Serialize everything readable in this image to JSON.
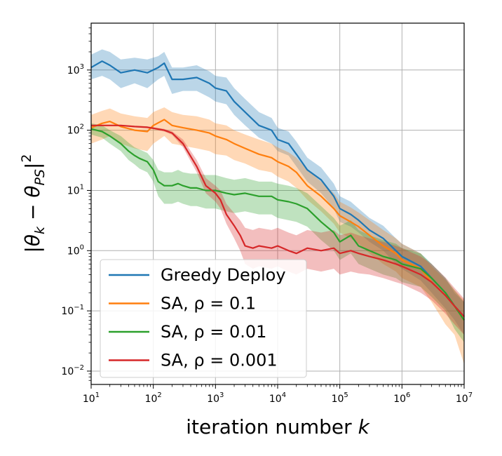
{
  "chart_data": {
    "type": "line",
    "xscale": "log",
    "yscale": "log",
    "xlim": [
      10,
      10000000
    ],
    "ylim": [
      0.006,
      6000
    ],
    "grid": true,
    "legend_position": "lower-left",
    "xlabel": "iteration number k",
    "ylabel": "|θk − θPS|²",
    "x_ticks": [
      {
        "value": 10,
        "base": "10",
        "exp": "1"
      },
      {
        "value": 100,
        "base": "10",
        "exp": "2"
      },
      {
        "value": 1000,
        "base": "10",
        "exp": "3"
      },
      {
        "value": 10000,
        "base": "10",
        "exp": "4"
      },
      {
        "value": 100000,
        "base": "10",
        "exp": "5"
      },
      {
        "value": 1000000,
        "base": "10",
        "exp": "6"
      },
      {
        "value": 10000000,
        "base": "10",
        "exp": "7"
      }
    ],
    "y_ticks": [
      {
        "value": 0.01,
        "base": "10",
        "exp": "−2"
      },
      {
        "value": 0.1,
        "base": "10",
        "exp": "−1"
      },
      {
        "value": 1,
        "base": "10",
        "exp": "0"
      },
      {
        "value": 10,
        "base": "10",
        "exp": "1"
      },
      {
        "value": 100,
        "base": "10",
        "exp": "2"
      },
      {
        "value": 1000,
        "base": "10",
        "exp": "3"
      }
    ],
    "series": [
      {
        "name": "Greedy Deploy",
        "color": "#1f77b4",
        "x": [
          10,
          15,
          20,
          30,
          50,
          80,
          120,
          150,
          200,
          300,
          500,
          800,
          1000,
          1500,
          2000,
          3000,
          5000,
          8000,
          10000,
          15000,
          20000,
          30000,
          50000,
          80000,
          100000,
          150000,
          200000,
          300000,
          500000,
          800000,
          1000000,
          2000000,
          3000000,
          5000000,
          7000000,
          10000000
        ],
        "y": [
          1100,
          1400,
          1200,
          900,
          1000,
          900,
          1100,
          1300,
          700,
          700,
          750,
          600,
          500,
          450,
          300,
          200,
          120,
          100,
          70,
          60,
          40,
          22,
          15,
          8,
          5,
          4,
          3.2,
          2.2,
          1.6,
          1.0,
          0.8,
          0.55,
          0.35,
          0.2,
          0.12,
          0.08
        ],
        "band_lo": [
          700,
          800,
          700,
          500,
          600,
          500,
          700,
          800,
          400,
          450,
          450,
          350,
          300,
          270,
          180,
          120,
          75,
          60,
          45,
          38,
          25,
          14,
          9,
          5,
          3,
          2.5,
          2,
          1.4,
          1,
          0.6,
          0.5,
          0.32,
          0.2,
          0.11,
          0.07,
          0.04
        ],
        "band_hi": [
          1800,
          2200,
          2000,
          1500,
          1600,
          1500,
          1700,
          2000,
          1100,
          1100,
          1200,
          950,
          800,
          750,
          500,
          330,
          200,
          160,
          110,
          95,
          65,
          35,
          24,
          13,
          8,
          6.5,
          5,
          3.5,
          2.6,
          1.6,
          1.3,
          0.9,
          0.6,
          0.35,
          0.2,
          0.14
        ]
      },
      {
        "name": "SA, ρ = 0.1",
        "color": "#ff7f0e",
        "x": [
          10,
          15,
          20,
          30,
          50,
          80,
          100,
          150,
          200,
          300,
          500,
          800,
          1000,
          1500,
          2000,
          3000,
          5000,
          8000,
          10000,
          15000,
          20000,
          30000,
          50000,
          80000,
          100000,
          150000,
          200000,
          300000,
          500000,
          800000,
          1000000,
          2000000,
          3000000,
          5000000,
          7000000,
          10000000
        ],
        "y": [
          110,
          130,
          140,
          115,
          100,
          95,
          120,
          150,
          120,
          110,
          100,
          90,
          80,
          70,
          60,
          50,
          40,
          35,
          30,
          25,
          20,
          12,
          8,
          5,
          3.8,
          3,
          2.5,
          1.8,
          1.2,
          0.9,
          0.7,
          0.5,
          0.3,
          0.18,
          0.12,
          0.07
        ],
        "band_lo": [
          60,
          70,
          80,
          60,
          50,
          45,
          60,
          80,
          60,
          55,
          50,
          45,
          40,
          38,
          32,
          28,
          22,
          20,
          17,
          14,
          11,
          7,
          4.5,
          2.8,
          2,
          1.6,
          1.3,
          0.9,
          0.6,
          0.45,
          0.35,
          0.25,
          0.14,
          0.06,
          0.04,
          0.013
        ],
        "band_hi": [
          180,
          210,
          230,
          190,
          170,
          160,
          200,
          240,
          200,
          180,
          170,
          150,
          130,
          120,
          100,
          85,
          70,
          60,
          52,
          43,
          35,
          22,
          14,
          9,
          6.5,
          5.2,
          4.3,
          3.2,
          2.2,
          1.6,
          1.3,
          0.9,
          0.55,
          0.33,
          0.22,
          0.15
        ]
      },
      {
        "name": "SA, ρ = 0.01",
        "color": "#2ca02c",
        "x": [
          10,
          15,
          20,
          30,
          40,
          50,
          60,
          80,
          100,
          120,
          150,
          200,
          250,
          300,
          400,
          500,
          700,
          1000,
          1500,
          2000,
          3000,
          5000,
          8000,
          10000,
          15000,
          20000,
          30000,
          50000,
          80000,
          100000,
          150000,
          200000,
          300000,
          500000,
          800000,
          1000000,
          2000000,
          3000000,
          5000000,
          7000000,
          10000000
        ],
        "y": [
          105,
          95,
          80,
          60,
          45,
          38,
          34,
          30,
          22,
          14,
          12,
          12,
          13,
          12,
          11,
          11,
          10,
          10,
          9,
          8.5,
          9,
          8,
          8,
          7,
          6.5,
          6,
          5,
          3,
          2,
          1.4,
          1.8,
          1.2,
          1.0,
          0.8,
          0.7,
          0.6,
          0.5,
          0.35,
          0.2,
          0.12,
          0.07
        ],
        "band_lo": [
          85,
          75,
          60,
          45,
          32,
          27,
          23,
          20,
          14,
          8,
          6,
          6,
          6.5,
          6,
          5.5,
          5.5,
          5,
          5,
          4.5,
          4.2,
          4.5,
          4,
          4,
          3.5,
          3.2,
          3,
          2.5,
          1.5,
          1,
          0.7,
          0.9,
          0.6,
          0.5,
          0.4,
          0.35,
          0.3,
          0.25,
          0.17,
          0.1,
          0.05,
          0.03
        ],
        "band_hi": [
          130,
          120,
          100,
          80,
          62,
          52,
          48,
          42,
          32,
          22,
          20,
          20,
          22,
          20,
          19,
          19,
          18,
          18,
          16,
          15,
          16,
          14,
          14,
          13,
          12,
          11,
          9,
          5.5,
          3.5,
          2.6,
          3.2,
          2.2,
          1.8,
          1.5,
          1.3,
          1.1,
          0.9,
          0.6,
          0.35,
          0.22,
          0.14
        ]
      },
      {
        "name": "SA, ρ = 0.001",
        "color": "#d62728",
        "x": [
          10,
          20,
          30,
          50,
          80,
          100,
          150,
          200,
          300,
          500,
          700,
          1000,
          1200,
          1500,
          2000,
          2500,
          3000,
          4000,
          5000,
          8000,
          10000,
          15000,
          20000,
          30000,
          50000,
          80000,
          100000,
          150000,
          200000,
          300000,
          500000,
          800000,
          1000000,
          2000000,
          3000000,
          5000000,
          7000000,
          10000000
        ],
        "y": [
          120,
          120,
          120,
          115,
          112,
          108,
          100,
          90,
          60,
          25,
          12,
          9,
          7,
          4,
          2.6,
          1.8,
          1.2,
          1.1,
          1.2,
          1.1,
          1.2,
          1.0,
          0.9,
          1.1,
          1.0,
          1.1,
          0.9,
          1.0,
          0.9,
          0.8,
          0.7,
          0.6,
          0.55,
          0.4,
          0.3,
          0.18,
          0.12,
          0.08
        ],
        "band_lo": [
          118,
          118,
          118,
          112,
          108,
          104,
          95,
          84,
          52,
          20,
          9,
          6.5,
          5,
          2.8,
          1.6,
          1.0,
          0.6,
          0.5,
          0.55,
          0.5,
          0.55,
          0.45,
          0.4,
          0.5,
          0.45,
          0.5,
          0.4,
          0.45,
          0.42,
          0.4,
          0.35,
          0.3,
          0.28,
          0.2,
          0.15,
          0.09,
          0.06,
          0.04
        ],
        "band_hi": [
          123,
          123,
          123,
          118,
          116,
          112,
          105,
          96,
          70,
          32,
          16,
          12,
          10,
          6,
          4.2,
          3.2,
          2.4,
          2.2,
          2.4,
          2.2,
          2.4,
          2.0,
          1.8,
          2.2,
          2.0,
          2.2,
          1.8,
          2.0,
          1.8,
          1.6,
          1.4,
          1.2,
          1.1,
          0.8,
          0.6,
          0.36,
          0.24,
          0.16
        ]
      }
    ]
  },
  "axes": {
    "xlabel_text": "iteration number ",
    "xlabel_var": "k",
    "ylabel_bar": "|",
    "ylabel_theta": "θ",
    "ylabel_k": "k",
    "ylabel_minus": " − ",
    "ylabel_theta2": "θ",
    "ylabel_ps": "PS",
    "ylabel_bar2": "|",
    "ylabel_sq": "2"
  }
}
